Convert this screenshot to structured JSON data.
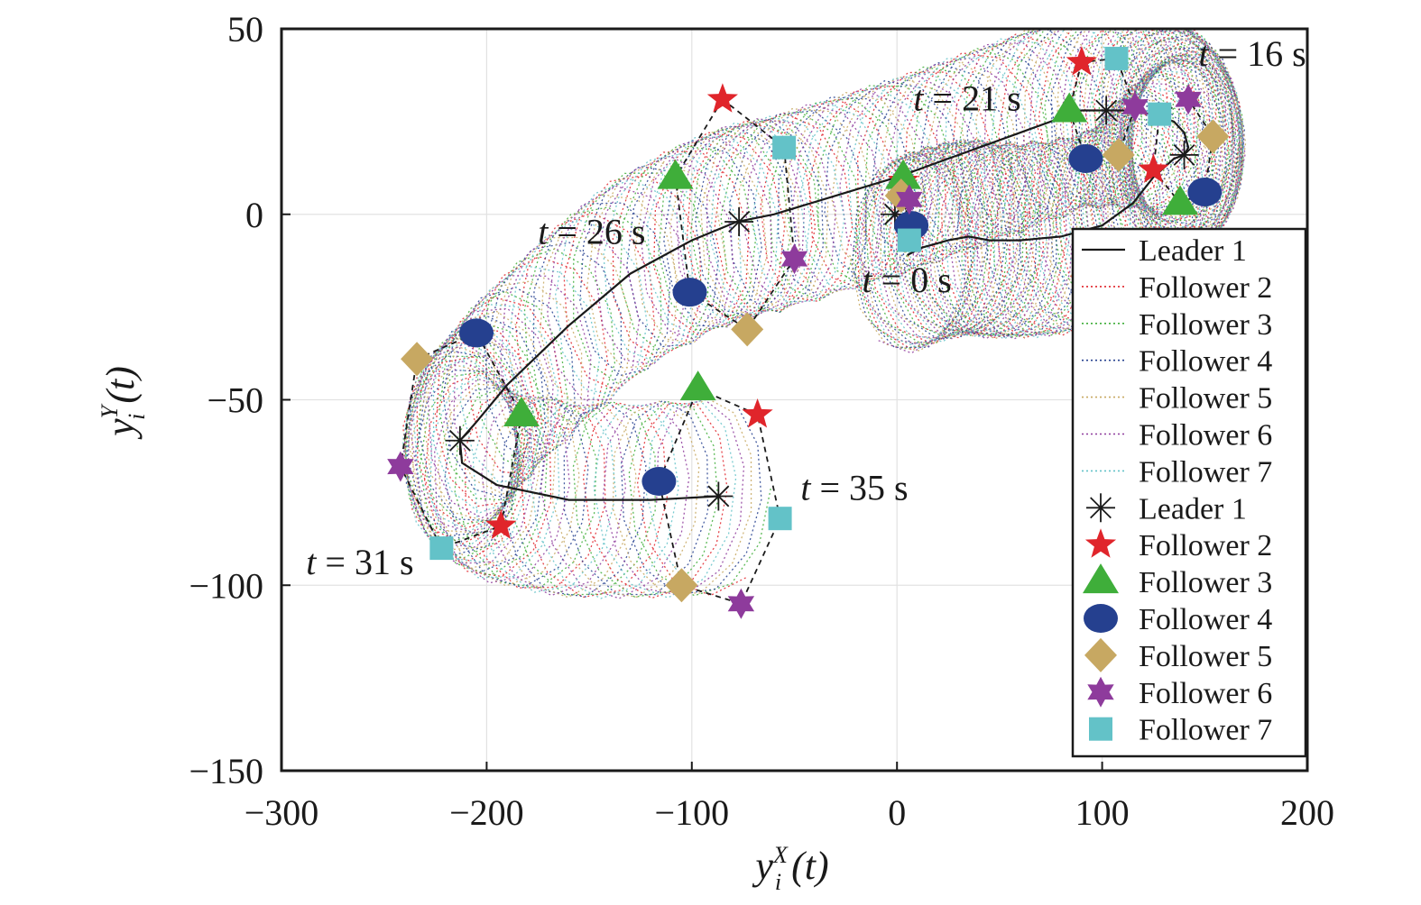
{
  "chart_data": {
    "type": "scatter",
    "xlim": [
      -300,
      200
    ],
    "ylim": [
      -150,
      50
    ],
    "xticks": [
      -300,
      -200,
      -100,
      0,
      100,
      200
    ],
    "yticks": [
      -150,
      -100,
      -50,
      0,
      50
    ],
    "xtick_labels": [
      "−300",
      "−200",
      "−100",
      "0",
      "100",
      "200"
    ],
    "ytick_labels": [
      "−150",
      "−100",
      "−50",
      "0",
      "50"
    ],
    "xlabel": {
      "main": "y",
      "sub": "i",
      "sup": "X",
      "arg": " (t)"
    },
    "ylabel": {
      "main": "y",
      "sub": "i",
      "sup": "Y",
      "arg": " (t)"
    },
    "grid": true,
    "legend_position": "right",
    "colors": {
      "leader": "#1a1a1a",
      "follower2": "#e0252b",
      "follower3": "#3fae3a",
      "follower4": "#25408f",
      "follower5": "#c7a862",
      "follower6": "#8e3b9c",
      "follower7": "#63c2c8"
    },
    "legend": [
      {
        "label": "Leader 1",
        "kind": "line",
        "color": "#1a1a1a",
        "dash": "solid"
      },
      {
        "label": "Follower 2",
        "kind": "line",
        "color": "#e0252b",
        "dash": "dot"
      },
      {
        "label": "Follower 3",
        "kind": "line",
        "color": "#3fae3a",
        "dash": "dot"
      },
      {
        "label": "Follower 4",
        "kind": "line",
        "color": "#25408f",
        "dash": "dot"
      },
      {
        "label": "Follower 5",
        "kind": "line",
        "color": "#c7a862",
        "dash": "dot"
      },
      {
        "label": "Follower 6",
        "kind": "line",
        "color": "#8e3b9c",
        "dash": "dot"
      },
      {
        "label": "Follower 7",
        "kind": "line",
        "color": "#63c2c8",
        "dash": "dot"
      },
      {
        "label": "Leader 1",
        "kind": "marker",
        "marker": "asterisk",
        "color": "#1a1a1a"
      },
      {
        "label": "Follower 2",
        "kind": "marker",
        "marker": "star",
        "color": "#e0252b"
      },
      {
        "label": "Follower 3",
        "kind": "marker",
        "marker": "triangle",
        "color": "#3fae3a"
      },
      {
        "label": "Follower 4",
        "kind": "marker",
        "marker": "ellipse",
        "color": "#25408f"
      },
      {
        "label": "Follower 5",
        "kind": "marker",
        "marker": "diamond",
        "color": "#c7a862"
      },
      {
        "label": "Follower 6",
        "kind": "marker",
        "marker": "hexagram",
        "color": "#8e3b9c"
      },
      {
        "label": "Follower 7",
        "kind": "marker",
        "marker": "square",
        "color": "#63c2c8"
      }
    ],
    "leader_trajectory": [
      [
        5,
        -11
      ],
      [
        12,
        -9
      ],
      [
        25,
        -7
      ],
      [
        35,
        -6
      ],
      [
        45,
        -7
      ],
      [
        60,
        -7
      ],
      [
        80,
        -6
      ],
      [
        100,
        -3
      ],
      [
        115,
        3
      ],
      [
        125,
        10
      ],
      [
        135,
        15
      ],
      [
        140,
        16
      ],
      [
        142,
        18
      ],
      [
        140,
        22
      ],
      [
        135,
        25
      ],
      [
        125,
        27
      ],
      [
        110,
        28
      ],
      [
        90,
        28
      ],
      [
        60,
        22
      ],
      [
        30,
        16
      ],
      [
        0,
        10
      ],
      [
        -30,
        5
      ],
      [
        -60,
        0
      ],
      [
        -78,
        -2
      ],
      [
        -100,
        -7
      ],
      [
        -130,
        -16
      ],
      [
        -160,
        -30
      ],
      [
        -190,
        -46
      ],
      [
        -205,
        -56
      ],
      [
        -213,
        -61
      ],
      [
        -212,
        -67
      ],
      [
        -195,
        -73
      ],
      [
        -160,
        -77
      ],
      [
        -120,
        -77
      ],
      [
        -87,
        -76
      ]
    ],
    "snapshots": [
      {
        "label": "t = 16 s",
        "formation": [
          [
            140,
            16
          ],
          [
            125,
            12
          ],
          [
            138,
            3
          ],
          [
            150,
            6
          ],
          [
            154,
            21
          ],
          [
            142,
            31
          ],
          [
            128,
            27
          ]
        ]
      },
      {
        "label": "t = 21 s",
        "formation": [
          [
            102,
            28
          ],
          [
            90,
            41
          ],
          [
            84,
            28
          ],
          [
            92,
            15
          ],
          [
            108,
            16
          ],
          [
            116,
            29
          ],
          [
            107,
            42
          ]
        ]
      },
      {
        "label": "t = 26 s",
        "formation": [
          [
            -77,
            -2
          ],
          [
            -85,
            31
          ],
          [
            -108,
            10
          ],
          [
            -101,
            -21
          ],
          [
            -73,
            -31
          ],
          [
            -50,
            -12
          ],
          [
            -55,
            18
          ]
        ]
      },
      {
        "label": "t = 0 s",
        "formation": [
          [
            -1,
            0
          ],
          [
            3,
            9
          ],
          [
            3,
            10
          ],
          [
            7,
            -3
          ],
          [
            2,
            5
          ],
          [
            6,
            4
          ],
          [
            6,
            -7
          ]
        ]
      },
      {
        "label": "t = 31 s",
        "formation": [
          [
            -213,
            -61
          ],
          [
            -193,
            -84
          ],
          [
            -183,
            -54
          ],
          [
            -205,
            -32
          ],
          [
            -234,
            -39
          ],
          [
            -242,
            -68
          ],
          [
            -222,
            -90
          ]
        ]
      },
      {
        "label": "t = 35 s",
        "formation": [
          [
            -87,
            -76
          ],
          [
            -68,
            -54
          ],
          [
            -97,
            -47
          ],
          [
            -116,
            -72
          ],
          [
            -105,
            -100
          ],
          [
            -76,
            -105
          ],
          [
            -57,
            -82
          ]
        ]
      }
    ],
    "annotations": [
      {
        "text": "t = 16 s",
        "x": 147,
        "y": 40
      },
      {
        "text": "t = 21 s",
        "x": 8,
        "y": 28
      },
      {
        "text": "t = 26 s",
        "x": -175,
        "y": -8
      },
      {
        "text": "t = 0 s",
        "x": -17,
        "y": -21
      },
      {
        "text": "t = 31 s",
        "x": -288,
        "y": -97
      },
      {
        "text": "t = 35 s",
        "x": -47,
        "y": -77
      }
    ]
  }
}
